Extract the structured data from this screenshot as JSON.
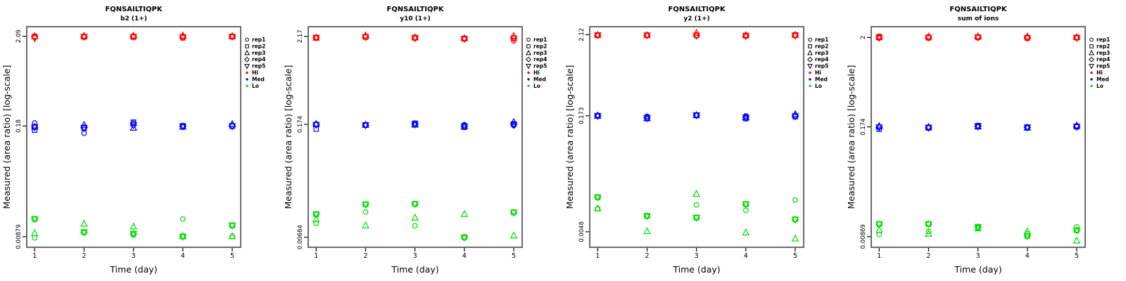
{
  "figure": {
    "peptide": "FQNSAILTIQPK",
    "background": "#ffffff",
    "frame_color": "#6b6b6b",
    "tick_color": "#000000"
  },
  "chart_data": {
    "type": "scatter",
    "x": [
      1,
      2,
      3,
      4,
      5
    ],
    "x_tick_labels": [
      "1",
      "2",
      "3",
      "4",
      "5"
    ],
    "xlabel": "Time (day)",
    "ylabel": "Measured (area ratio) [log-scale]",
    "y_scale": "log",
    "grid": false,
    "legend_position": "right",
    "legend": {
      "reps": [
        {
          "label": "rep1",
          "marker": "circle"
        },
        {
          "label": "rep2",
          "marker": "square"
        },
        {
          "label": "rep3",
          "marker": "triangle-up"
        },
        {
          "label": "rep4",
          "marker": "diamond"
        },
        {
          "label": "rep5",
          "marker": "triangle-down"
        }
      ],
      "groups": [
        {
          "label": "Hi",
          "color": "#ff0000"
        },
        {
          "label": "Med",
          "color": "#0000ff"
        },
        {
          "label": "Lo",
          "color": "#00dd00"
        }
      ]
    },
    "panels": [
      {
        "title": "FQNSAILTIQPK",
        "subtitle": "b2 (1+)",
        "ytick_values": [
          2.09,
          0.18,
          0.00879
        ],
        "ytick_labels": [
          "2.09",
          "0.18",
          "0.00879"
        ],
        "ylog_range": [
          -2.182,
          0.433
        ],
        "series": {
          "Hi": [
            [
              2.04,
              2.08,
              2.1,
              2.06,
              1.97
            ],
            [
              2.04,
              2.05,
              2.11,
              2.06,
              2.05
            ],
            [
              2.05,
              2.04,
              2.12,
              2.06,
              2.05
            ],
            [
              2.03,
              2.0,
              2.13,
              2.04,
              2.03
            ],
            [
              2.07,
              2.06,
              2.1,
              2.07,
              2.06
            ]
          ],
          "Med": [
            [
              0.196,
              0.161,
              0.177,
              0.175,
              0.174
            ],
            [
              0.148,
              0.17,
              0.186,
              0.172,
              0.171
            ],
            [
              0.195,
              0.2,
              0.172,
              0.185,
              0.184
            ],
            [
              0.179,
              0.181,
              0.177,
              0.179,
              0.178
            ],
            [
              0.18,
              0.179,
              0.19,
              0.18,
              0.179
            ]
          ],
          "Lo": [
            [
              0.0085,
              0.0142,
              0.0097,
              0.0142,
              0.0142
            ],
            [
              0.0098,
              0.0099,
              0.0125,
              0.0099,
              0.0099
            ],
            [
              0.0092,
              0.0095,
              0.0116,
              0.0095,
              0.0095
            ],
            [
              0.0142,
              0.0088,
              0.0089,
              0.0088,
              0.0088
            ],
            [
              0.0088,
              0.0119,
              0.0089,
              0.0119,
              0.0119
            ]
          ]
        }
      },
      {
        "title": "FQNSAILTIQPK",
        "subtitle": "y10 (1+)",
        "ytick_values": [
          2.17,
          0.174,
          0.00684
        ],
        "ytick_labels": [
          "2.17",
          "0.174",
          "0.00684"
        ],
        "ylog_range": [
          -2.29,
          0.456
        ],
        "series": {
          "Hi": [
            [
              2.08,
              2.1,
              2.09,
              2.09,
              2.08
            ],
            [
              2.12,
              2.12,
              2.22,
              2.13,
              2.12
            ],
            [
              2.05,
              2.1,
              2.1,
              2.07,
              2.06
            ],
            [
              2.0,
              2.03,
              2.06,
              2.02,
              2.01
            ],
            [
              1.9,
              2.05,
              2.2,
              2.04,
              2.03
            ]
          ],
          "Med": [
            [
              0.175,
              0.152,
              0.176,
              0.172,
              0.171
            ],
            [
              0.169,
              0.171,
              0.172,
              0.17,
              0.17
            ],
            [
              0.172,
              0.18,
              0.173,
              0.174,
              0.173
            ],
            [
              0.172,
              0.16,
              0.166,
              0.165,
              0.164
            ],
            [
              0.168,
              0.176,
              0.186,
              0.172,
              0.171
            ]
          ],
          "Lo": [
            [
              0.0102,
              0.0132,
              0.0115,
              0.0132,
              0.0132
            ],
            [
              0.0141,
              0.0175,
              0.0096,
              0.0175,
              0.0175
            ],
            [
              0.0095,
              0.0177,
              0.012,
              0.0177,
              0.0177
            ],
            [
              0.0067,
              0.0068,
              0.0133,
              0.0068,
              0.0068
            ],
            [
              0.014,
              0.0139,
              0.0072,
              0.0139,
              0.0139
            ]
          ]
        }
      },
      {
        "title": "FQNSAILTIQPK",
        "subtitle": "y2 (1+)",
        "ytick_values": [
          2.12,
          0.173,
          0.0048
        ],
        "ytick_labels": [
          "2.12",
          "0.173",
          "0.0048"
        ],
        "ylog_range": [
          -2.527,
          0.433
        ],
        "series": {
          "Hi": [
            [
              2.07,
              2.09,
              2.1,
              2.08,
              2.08
            ],
            [
              2.07,
              2.08,
              2.09,
              2.08,
              2.07
            ],
            [
              2.04,
              2.07,
              2.24,
              2.06,
              2.05
            ],
            [
              2.01,
              2.06,
              2.09,
              2.05,
              2.04
            ],
            [
              2.05,
              2.1,
              2.11,
              2.07,
              2.06
            ]
          ],
          "Med": [
            [
              0.176,
              0.171,
              0.174,
              0.173,
              0.172
            ],
            [
              0.17,
              0.158,
              0.16,
              0.162,
              0.161
            ],
            [
              0.177,
              0.175,
              0.176,
              0.176,
              0.175
            ],
            [
              0.172,
              0.158,
              0.165,
              0.164,
              0.163
            ],
            [
              0.17,
              0.168,
              0.182,
              0.171,
              0.17
            ]
          ],
          "Lo": [
            [
              0.0098,
              0.0139,
              0.0099,
              0.0139,
              0.0139
            ],
            [
              0.0077,
              0.0078,
              0.0049,
              0.0078,
              0.0078
            ],
            [
              0.011,
              0.0074,
              0.0155,
              0.0074,
              0.0074
            ],
            [
              0.0093,
              0.0112,
              0.0047,
              0.0112,
              0.0112
            ],
            [
              0.0128,
              0.007,
              0.0039,
              0.007,
              0.007
            ]
          ]
        }
      },
      {
        "title": "FQNSAILTIQPK",
        "subtitle": "sum of ions",
        "ytick_values": [
          2,
          0.174,
          0.00869
        ],
        "ytick_labels": [
          "2",
          "0.174",
          "0.00869"
        ],
        "ylog_range": [
          -2.188,
          0.429
        ],
        "series": {
          "Hi": [
            [
              1.96,
              2.05,
              2.02,
              2.0,
              1.99
            ],
            [
              1.99,
              1.98,
              2.06,
              2.0,
              1.99
            ],
            [
              2.0,
              2.01,
              2.06,
              2.01,
              2.0
            ],
            [
              1.96,
              1.97,
              2.06,
              1.98,
              1.97
            ],
            [
              1.97,
              2.0,
              2.02,
              1.99,
              1.98
            ]
          ],
          "Med": [
            [
              0.174,
              0.163,
              0.178,
              0.172,
              0.171
            ],
            [
              0.17,
              0.169,
              0.174,
              0.171,
              0.17
            ],
            [
              0.175,
              0.18,
              0.176,
              0.177,
              0.176
            ],
            [
              0.173,
              0.17,
              0.171,
              0.172,
              0.171
            ],
            [
              0.175,
              0.174,
              0.181,
              0.176,
              0.175
            ]
          ],
          "Lo": [
            [
              0.0092,
              0.0122,
              0.0105,
              0.0122,
              0.0122
            ],
            [
              0.01,
              0.0122,
              0.0094,
              0.0122,
              0.0122
            ],
            [
              0.011,
              0.0113,
              0.0109,
              0.0113,
              0.0113
            ],
            [
              0.0094,
              0.0088,
              0.01,
              0.0088,
              0.0088
            ],
            [
              0.0113,
              0.0103,
              0.0078,
              0.0103,
              0.0103
            ]
          ]
        }
      }
    ]
  }
}
